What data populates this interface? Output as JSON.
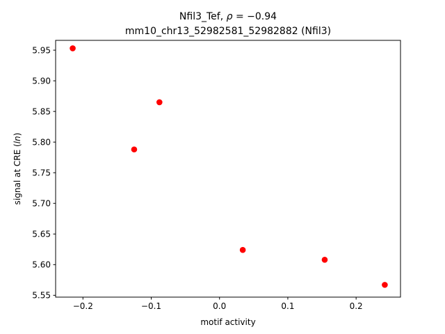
{
  "chart_data": {
    "type": "scatter",
    "title_line1_prefix": "Nfil3_Tef, ",
    "title_line1_rho": "ρ",
    "title_line1_eq": " = −0.94",
    "title_line2": "mm10_chr13_52982581_52982882 (Nfil3)",
    "xlabel": "motif activity",
    "ylabel_prefix": "signal at CRE (",
    "ylabel_italic": "ln",
    "ylabel_suffix": ")",
    "xlim": [
      -0.24,
      0.265
    ],
    "ylim": [
      5.547,
      5.966
    ],
    "xticks": [
      -0.2,
      -0.1,
      0.0,
      0.1,
      0.2
    ],
    "xtick_labels": [
      "−0.2",
      "−0.1",
      "0.0",
      "0.1",
      "0.2"
    ],
    "yticks": [
      5.55,
      5.6,
      5.65,
      5.7,
      5.75,
      5.8,
      5.85,
      5.9,
      5.95
    ],
    "ytick_labels": [
      "5.55",
      "5.60",
      "5.65",
      "5.70",
      "5.75",
      "5.80",
      "5.85",
      "5.90",
      "5.95"
    ],
    "grid": false,
    "marker_color": "#ff0000",
    "points": [
      {
        "x": -0.215,
        "y": 5.953
      },
      {
        "x": -0.125,
        "y": 5.788
      },
      {
        "x": -0.088,
        "y": 5.865
      },
      {
        "x": 0.034,
        "y": 5.624
      },
      {
        "x": 0.154,
        "y": 5.608
      },
      {
        "x": 0.242,
        "y": 5.567
      }
    ]
  }
}
